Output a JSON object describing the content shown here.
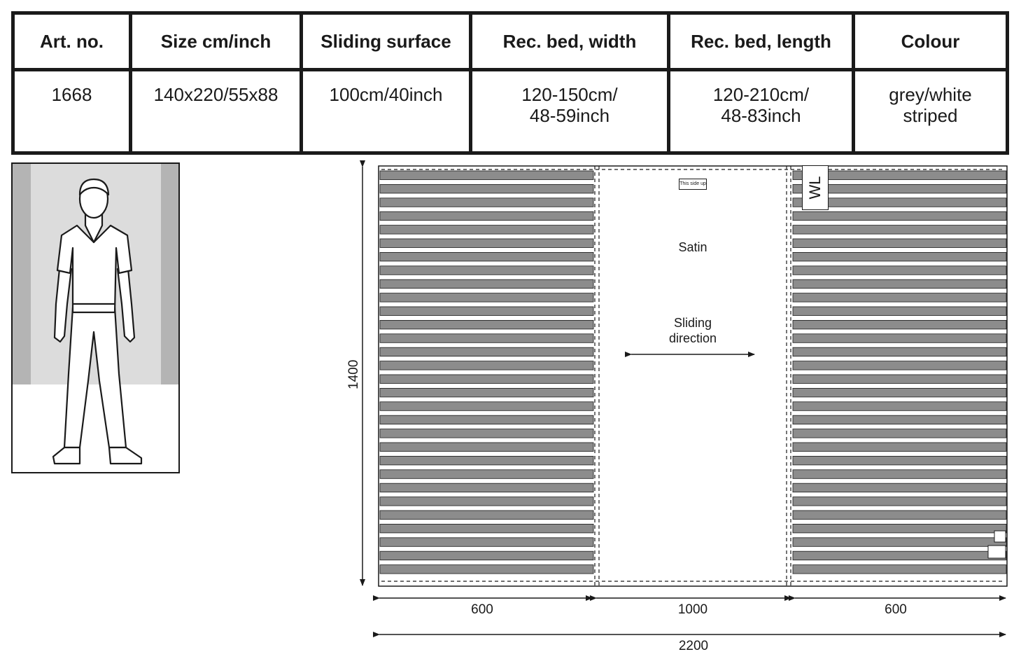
{
  "spec_table": {
    "headers": [
      "Art. no.",
      "Size cm/inch",
      "Sliding surface",
      "Rec. bed, width",
      "Rec. bed, length",
      "Colour"
    ],
    "row": [
      [
        "1668"
      ],
      [
        "140x220/55x88"
      ],
      [
        "100cm/40inch"
      ],
      [
        "120-150cm/",
        "48-59inch"
      ],
      [
        "120-210cm/",
        "48-83inch"
      ],
      [
        "grey/white",
        "striped"
      ]
    ]
  },
  "figure": {
    "icon": "standing-person-icon"
  },
  "diagram": {
    "tiny_label": "This side up",
    "wl_tag": "WL",
    "center_title": "Satin",
    "sliding_label_line1": "Sliding",
    "sliding_label_line2": "direction",
    "dim_height": "1400",
    "dim_left": "600",
    "dim_center": "1000",
    "dim_right": "600",
    "dim_total": "2200",
    "stripe_color": "#8c8c8c",
    "stripes_per_side": 30
  }
}
